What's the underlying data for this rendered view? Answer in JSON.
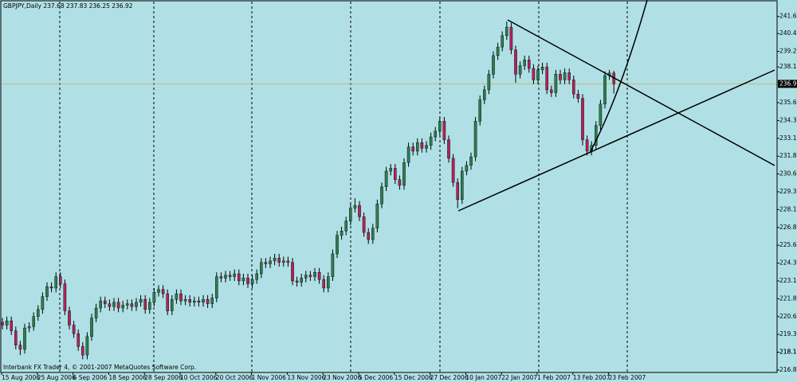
{
  "chart_data": {
    "type": "candlestick",
    "title": "GBPJPY,Daily 237.68 237.83 236.25 236.92",
    "annotation": "Interbank FX Trader 4, © 2001-2007 MetaQuotes Software Corp.",
    "categories": [
      "15 Aug 2006",
      null,
      null,
      null,
      null,
      null,
      null,
      null,
      "25 Aug 2006",
      null,
      null,
      null,
      null,
      null,
      null,
      null,
      "6 Sep 2006",
      null,
      null,
      null,
      null,
      null,
      null,
      null,
      "18 Sep 2006",
      null,
      null,
      null,
      null,
      null,
      null,
      null,
      "28 Sep 2006",
      null,
      null,
      null,
      null,
      null,
      null,
      null,
      "10 Oct 2006",
      null,
      null,
      null,
      null,
      null,
      null,
      null,
      "20 Oct 2006",
      null,
      null,
      null,
      null,
      null,
      null,
      null,
      "1 Nov 2006",
      null,
      null,
      null,
      null,
      null,
      null,
      null,
      "13 Nov 2006",
      null,
      null,
      null,
      null,
      null,
      null,
      null,
      "23 Nov 2006",
      null,
      null,
      null,
      null,
      null,
      null,
      null,
      "5 Dec 2006",
      null,
      null,
      null,
      null,
      null,
      null,
      null,
      "15 Dec 2006",
      null,
      null,
      null,
      null,
      null,
      null,
      null,
      "27 Dec 2006",
      null,
      null,
      null,
      null,
      null,
      null,
      null,
      "10 Jan 2007",
      null,
      null,
      null,
      null,
      null,
      null,
      null,
      "22 Jan 2007",
      null,
      null,
      null,
      null,
      null,
      null,
      null,
      "1 Feb 2007",
      null,
      null,
      null,
      null,
      null,
      null,
      null,
      "13 Feb 2007",
      null,
      null,
      null,
      null,
      null,
      null,
      null,
      "23 Feb 2007",
      null
    ],
    "open": [
      220.2,
      220.0,
      220.3,
      219.6,
      218.6,
      218.3,
      219.8,
      219.9,
      220.6,
      221.1,
      222.0,
      222.7,
      222.6,
      223.4,
      222.9,
      221.0,
      220.0,
      219.4,
      218.5,
      217.9,
      219.2,
      220.5,
      221.2,
      221.7,
      221.5,
      221.3,
      221.6,
      221.2,
      221.4,
      221.5,
      221.3,
      221.6,
      221.8,
      221.1,
      221.6,
      222.3,
      222.5,
      222.2,
      221.0,
      221.8,
      222.2,
      221.7,
      221.8,
      221.6,
      221.7,
      221.6,
      221.8,
      221.5,
      221.9,
      223.4,
      223.3,
      223.5,
      223.4,
      223.6,
      223.1,
      223.3,
      222.9,
      223.2,
      223.6,
      224.4,
      224.3,
      224.5,
      224.7,
      224.4,
      224.5,
      224.4,
      223.1,
      223.0,
      223.3,
      223.5,
      223.4,
      223.7,
      223.2,
      222.6,
      223.4,
      225.0,
      226.3,
      226.6,
      227.3,
      228.2,
      228.4,
      227.6,
      226.5,
      226.0,
      226.8,
      228.5,
      229.7,
      230.8,
      231.0,
      230.2,
      229.8,
      231.4,
      232.5,
      232.2,
      232.8,
      232.4,
      232.6,
      233.2,
      233.6,
      234.3,
      233.0,
      231.7,
      230.0,
      228.8,
      230.8,
      231.2,
      231.8,
      234.3,
      235.8,
      236.5,
      237.6,
      238.9,
      239.5,
      240.3,
      240.9,
      239.3,
      237.6,
      238.2,
      238.6,
      238.0,
      237.2,
      237.9,
      238.1,
      236.5,
      236.3,
      237.6,
      237.2,
      237.7,
      237.2,
      236.2,
      235.9,
      233.0,
      232.2,
      232.6,
      234.0,
      235.5,
      237.5,
      237.68
    ],
    "high": [
      220.5,
      220.6,
      220.6,
      219.9,
      218.9,
      220.1,
      220.2,
      220.9,
      221.4,
      222.3,
      223.0,
      223.0,
      223.7,
      223.7,
      223.2,
      221.3,
      220.3,
      219.7,
      218.8,
      219.5,
      220.8,
      221.5,
      222.0,
      222.0,
      221.8,
      221.9,
      221.9,
      221.7,
      221.8,
      221.8,
      221.9,
      222.1,
      222.1,
      221.9,
      222.6,
      222.8,
      222.8,
      222.5,
      222.1,
      222.5,
      222.5,
      222.1,
      222.1,
      222.0,
      222.0,
      222.1,
      222.1,
      222.2,
      223.7,
      223.7,
      223.8,
      223.8,
      223.9,
      223.9,
      223.6,
      223.6,
      223.5,
      223.9,
      224.7,
      224.7,
      224.8,
      225.0,
      225.0,
      224.8,
      224.8,
      224.7,
      223.4,
      223.6,
      223.8,
      223.8,
      224.0,
      224.0,
      223.5,
      223.7,
      225.3,
      226.6,
      226.9,
      227.6,
      228.5,
      228.9,
      228.7,
      227.9,
      226.8,
      227.1,
      228.8,
      230.0,
      231.1,
      231.3,
      231.3,
      230.5,
      231.7,
      232.8,
      232.8,
      233.1,
      233.1,
      232.9,
      233.5,
      233.9,
      234.6,
      234.6,
      233.3,
      232.0,
      230.3,
      231.1,
      231.5,
      232.1,
      234.6,
      236.1,
      236.8,
      237.9,
      239.2,
      239.8,
      240.6,
      241.3,
      241.2,
      239.6,
      238.5,
      238.9,
      238.9,
      238.3,
      238.2,
      238.4,
      238.4,
      236.8,
      237.9,
      237.9,
      238.0,
      238.0,
      237.5,
      236.5,
      236.2,
      233.3,
      232.9,
      234.3,
      235.8,
      237.8,
      237.9,
      237.83
    ],
    "low": [
      219.7,
      219.7,
      219.3,
      218.3,
      217.9,
      218.0,
      219.5,
      219.6,
      220.3,
      220.8,
      221.7,
      222.3,
      222.3,
      222.6,
      220.7,
      219.7,
      219.1,
      218.2,
      217.6,
      217.6,
      218.9,
      220.2,
      220.9,
      221.2,
      221.0,
      221.0,
      220.9,
      220.9,
      221.1,
      221.0,
      221.0,
      221.3,
      220.8,
      220.8,
      221.3,
      222.0,
      221.9,
      220.7,
      220.7,
      221.5,
      221.4,
      221.4,
      221.3,
      221.3,
      221.3,
      221.3,
      221.2,
      221.2,
      221.6,
      223.0,
      223.0,
      223.1,
      223.1,
      222.8,
      222.8,
      222.6,
      222.6,
      222.9,
      223.3,
      224.0,
      224.0,
      224.2,
      224.1,
      224.1,
      224.1,
      222.8,
      222.7,
      222.7,
      223.0,
      223.1,
      223.1,
      222.9,
      222.3,
      222.3,
      223.1,
      224.7,
      226.0,
      226.3,
      227.0,
      227.9,
      227.3,
      226.2,
      225.7,
      225.7,
      226.5,
      228.2,
      229.4,
      230.5,
      229.9,
      229.5,
      229.5,
      231.1,
      231.9,
      231.9,
      232.1,
      232.1,
      232.3,
      232.9,
      233.3,
      232.7,
      231.4,
      229.7,
      228.2,
      228.5,
      230.5,
      230.9,
      231.5,
      234.0,
      235.5,
      236.2,
      237.3,
      238.6,
      239.2,
      240.0,
      239.0,
      237.0,
      237.3,
      237.9,
      237.7,
      236.9,
      236.9,
      237.6,
      236.2,
      236.0,
      236.0,
      236.9,
      236.9,
      236.9,
      235.9,
      235.6,
      232.6,
      231.9,
      231.9,
      232.3,
      233.7,
      235.2,
      237.2,
      236.25
    ],
    "close": [
      220.0,
      220.3,
      219.6,
      218.6,
      218.3,
      219.8,
      219.9,
      220.6,
      221.1,
      222.0,
      222.7,
      222.6,
      223.4,
      222.9,
      221.0,
      220.0,
      219.4,
      218.5,
      217.9,
      219.2,
      220.5,
      221.2,
      221.7,
      221.5,
      221.3,
      221.6,
      221.2,
      221.4,
      221.5,
      221.3,
      221.6,
      221.8,
      221.1,
      221.6,
      222.3,
      222.5,
      222.2,
      221.0,
      221.8,
      222.2,
      221.7,
      221.8,
      221.6,
      221.7,
      221.6,
      221.8,
      221.5,
      221.9,
      223.4,
      223.3,
      223.5,
      223.4,
      223.6,
      223.1,
      223.3,
      222.9,
      223.2,
      223.6,
      224.4,
      224.3,
      224.5,
      224.7,
      224.4,
      224.5,
      224.4,
      223.1,
      223.0,
      223.3,
      223.5,
      223.4,
      223.7,
      223.2,
      222.6,
      223.4,
      225.0,
      226.3,
      226.6,
      227.3,
      228.2,
      228.4,
      227.6,
      226.5,
      226.0,
      226.8,
      228.5,
      229.7,
      230.8,
      231.0,
      230.2,
      229.8,
      231.4,
      232.5,
      232.2,
      232.8,
      232.4,
      232.6,
      233.2,
      233.6,
      234.3,
      233.0,
      231.7,
      230.0,
      228.8,
      230.8,
      231.2,
      231.8,
      234.3,
      235.8,
      236.5,
      237.6,
      238.9,
      239.5,
      240.3,
      240.9,
      239.3,
      237.6,
      238.2,
      238.6,
      238.0,
      237.2,
      237.9,
      238.1,
      236.5,
      236.3,
      237.6,
      237.2,
      237.7,
      237.2,
      236.2,
      235.9,
      233.0,
      232.2,
      232.6,
      234.0,
      235.5,
      237.5,
      237.68,
      236.92
    ],
    "up_color": "#2e7d4f",
    "down_color": "#b0245a",
    "last_price": 236.92,
    "last_price_color": "#c8b870",
    "ylim": [
      216.68,
      242.69
    ],
    "yticks": [
      216.85,
      218.1,
      {
        "value": 218.1,
        "label": "218.10"
      },
      219.35,
      {
        "value": 220.6,
        "label": "220.60"
      },
      221.85,
      223.1,
      224.35,
      {
        "value": 225.6,
        "label": "225.60"
      },
      226.85,
      {
        "value": 228.1,
        "label": "228.10"
      },
      229.35,
      {
        "value": 230.6,
        "label": "230.60"
      },
      231.85,
      233.1,
      234.35,
      {
        "value": 235.6,
        "label": "235.60"
      },
      {
        "value": 238.1,
        "label": "238.10"
      },
      239.2,
      240.45,
      241.65
    ]
  }
}
